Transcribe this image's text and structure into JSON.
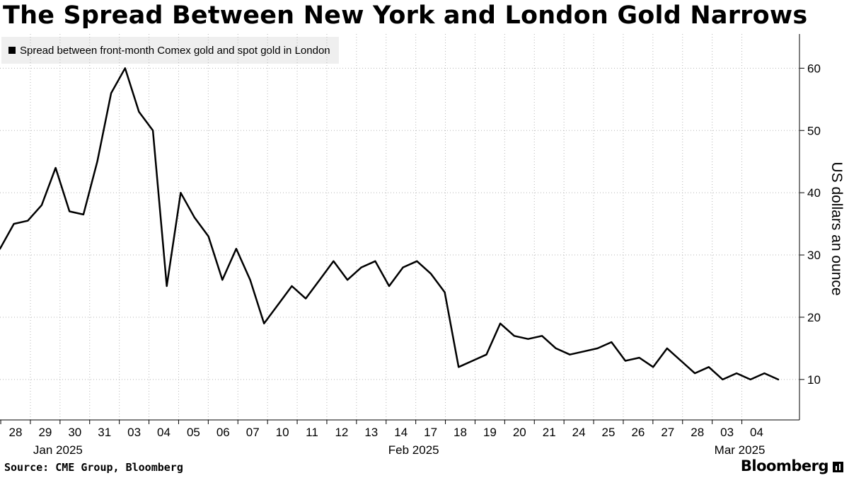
{
  "title": "The Spread Between New York and London Gold Narrows",
  "footer": {
    "source": "Source: CME Group, Bloomberg",
    "brand": "Bloomberg"
  },
  "chart_data": {
    "type": "line",
    "title": "The Spread Between New York and London Gold Narrows",
    "ylabel": "US dollars an ounce",
    "xlabel": "",
    "ylim": [
      3.5,
      65.5
    ],
    "yticks": [
      10,
      20,
      30,
      40,
      50,
      60
    ],
    "grid": true,
    "legend_position": "top-left",
    "line_color": "#000000",
    "x_tick_labels": [
      "28",
      "29",
      "30",
      "31",
      "03",
      "04",
      "05",
      "06",
      "07",
      "10",
      "11",
      "12",
      "13",
      "14",
      "17",
      "18",
      "19",
      "20",
      "21",
      "24",
      "25",
      "26",
      "27",
      "28",
      "03",
      "04"
    ],
    "x_month_labels": [
      {
        "label": "Jan 2025",
        "at_index": 1
      },
      {
        "label": "Feb 2025",
        "at_index": 13
      },
      {
        "label": "Mar 2025",
        "at_index": 24
      }
    ],
    "x": [
      "Dec 27",
      "Dec 28",
      "Dec 28.5",
      "Dec 29",
      "Dec 29.5",
      "Dec 30",
      "Dec 30.3",
      "Dec 30.6",
      "Dec 30.8",
      "Dec 31",
      "Dec 31.3",
      "Dec 31.6",
      "Dec 31.8",
      "Jan 03",
      "Jan 03.5",
      "Jan 04",
      "Jan 04.5",
      "Jan 05",
      "Jan 05.5",
      "Jan 06",
      "Jan 06.5",
      "Jan 07",
      "Jan 07.5",
      "Jan 10",
      "Jan 10.5",
      "Jan 11",
      "Jan 11.5",
      "Jan 12",
      "Jan 12.5",
      "Jan 13",
      "Jan 13.5",
      "Jan 13.8",
      "Jan 14",
      "Jan 14.5",
      "Jan 17",
      "Jan 17.5",
      "Jan 18",
      "Jan 18.5",
      "Jan 19",
      "Jan 19.5",
      "Jan 20",
      "Jan 20.5",
      "Jan 21",
      "Jan 21.5",
      "Jan 24",
      "Jan 24.5",
      "Jan 25",
      "Jan 25.5",
      "Jan 26",
      "Jan 26.5",
      "Jan 27",
      "Jan 27.5",
      "Jan 28",
      "Jan 28.5",
      "Feb 03",
      "Feb 03.5",
      "Feb 04"
    ],
    "series": [
      {
        "name": "Spread between front-month Comex gold and spot gold in London",
        "values": [
          31,
          35,
          35.5,
          38,
          44,
          37,
          36.5,
          45,
          56,
          60,
          53,
          50,
          25,
          40,
          36,
          33,
          26,
          31,
          26,
          19,
          22,
          25,
          23,
          26,
          29,
          26,
          28,
          29,
          25,
          28,
          29,
          27,
          24,
          12,
          13,
          14,
          19,
          17,
          16.5,
          17,
          15,
          14,
          14.5,
          15,
          16,
          13,
          13.5,
          12,
          15,
          13,
          11,
          12,
          10,
          11,
          10,
          11,
          10
        ]
      }
    ]
  }
}
